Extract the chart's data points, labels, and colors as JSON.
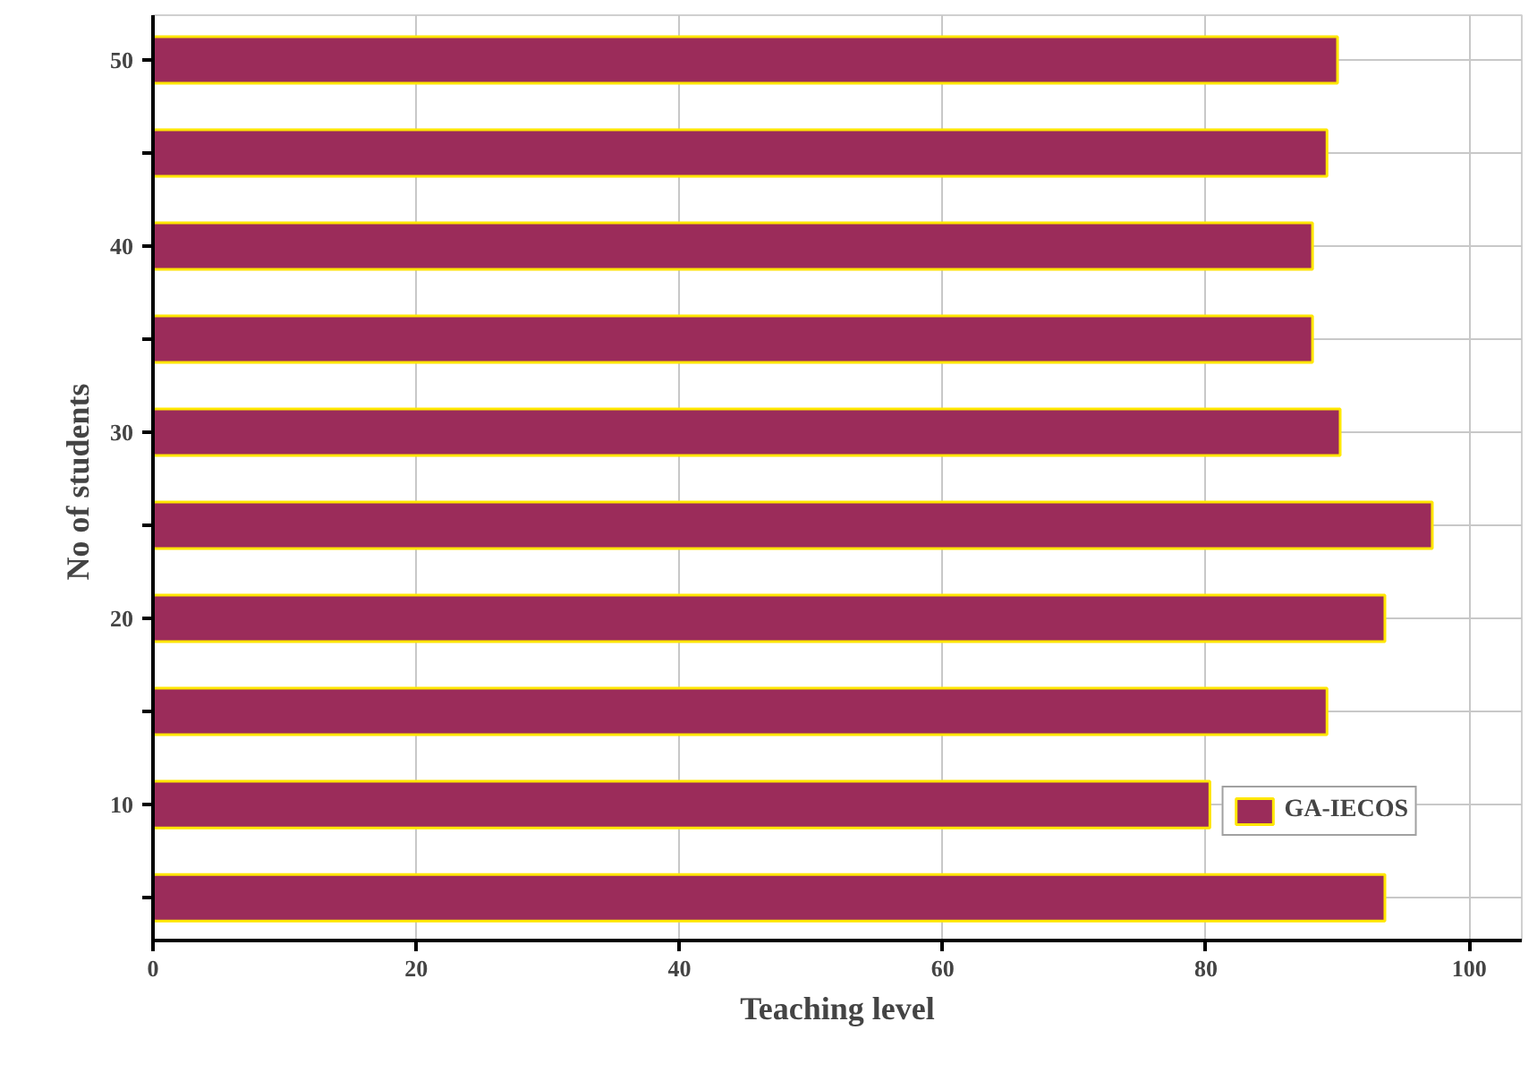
{
  "chart_data": {
    "type": "bar",
    "orientation": "horizontal",
    "xlabel": "Teaching level",
    "ylabel": "No  of students",
    "categories": [
      "50",
      null,
      "40",
      null,
      "30",
      null,
      "20",
      null,
      "10",
      null
    ],
    "series": [
      {
        "name": "GA-IECOS",
        "color": "#9b2c5a",
        "values": [
          90,
          89.2,
          88.1,
          88.1,
          90.2,
          97.2,
          93.6,
          89.2,
          80.3,
          93.6
        ]
      }
    ],
    "xlim": [
      0,
      104
    ],
    "xticks": [
      0,
      20,
      40,
      60,
      80,
      100
    ],
    "grid": true,
    "legend": "bottom right"
  }
}
